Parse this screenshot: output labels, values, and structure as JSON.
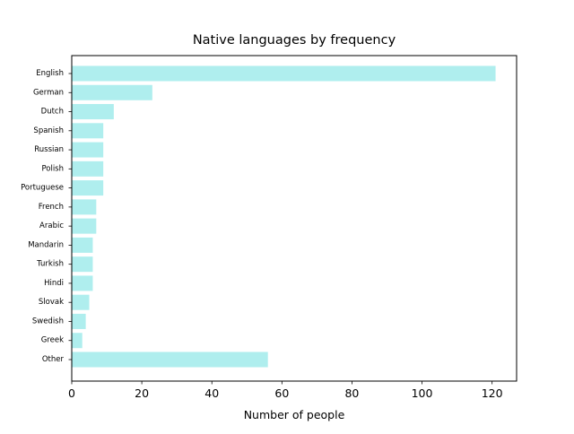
{
  "chart_data": {
    "type": "bar",
    "orientation": "horizontal",
    "title": "Native languages by frequency",
    "xlabel": "Number of people",
    "ylabel": "",
    "categories": [
      "English",
      "German",
      "Dutch",
      "Spanish",
      "Russian",
      "Polish",
      "Portuguese",
      "French",
      "Arabic",
      "Mandarin",
      "Turkish",
      "Hindi",
      "Slovak",
      "Swedish",
      "Greek",
      "Other"
    ],
    "values": [
      121,
      23,
      12,
      9,
      9,
      9,
      9,
      7,
      7,
      6,
      6,
      6,
      5,
      4,
      3,
      56
    ],
    "xlim": [
      0,
      127
    ],
    "xticks": [
      0,
      20,
      40,
      60,
      80,
      100,
      120
    ],
    "grid": false,
    "legend": "none",
    "bar_color": "#afeeee"
  }
}
